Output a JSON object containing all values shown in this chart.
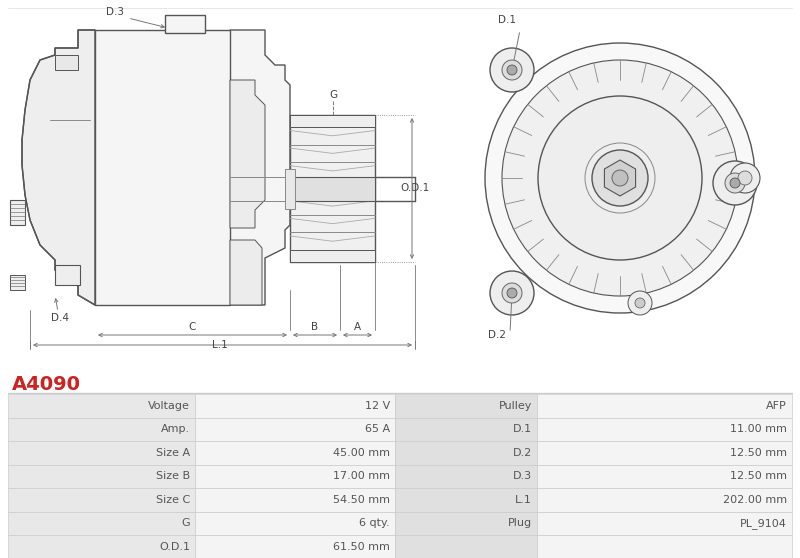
{
  "title": "A4090",
  "title_color": "#cc2222",
  "bg_color": "#ffffff",
  "table_rows": [
    [
      "Voltage",
      "12 V",
      "Pulley",
      "AFP"
    ],
    [
      "Amp.",
      "65 A",
      "D.1",
      "11.00 mm"
    ],
    [
      "Size A",
      "45.00 mm",
      "D.2",
      "12.50 mm"
    ],
    [
      "Size B",
      "17.00 mm",
      "D.3",
      "12.50 mm"
    ],
    [
      "Size C",
      "54.50 mm",
      "L.1",
      "202.00 mm"
    ],
    [
      "G",
      "6 qty.",
      "Plug",
      "PL_9104"
    ],
    [
      "O.D.1",
      "61.50 mm",
      "",
      ""
    ]
  ],
  "diagram_line_color": "#555555",
  "dim_line_color": "#888888",
  "fill_light": "#f5f5f5",
  "fill_medium": "#eeeeee",
  "text_color": "#555555",
  "border_color": "#cccccc",
  "label_col_bg": "#e8e8e8",
  "value_col_bg": "#f4f4f4",
  "right_label_bg": "#e0e0e0",
  "title_font_size": 14,
  "table_font_size": 8.0
}
